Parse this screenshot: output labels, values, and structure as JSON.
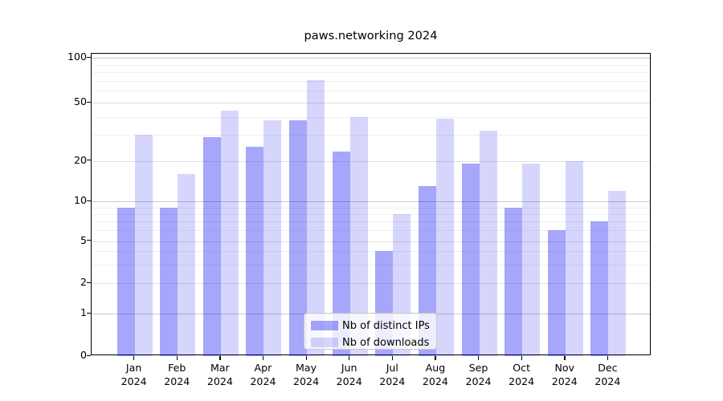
{
  "page": {
    "background": "#ffffff"
  },
  "chart_data": {
    "type": "bar",
    "title": "paws.networking 2024",
    "categories": [
      "Jan",
      "Feb",
      "Mar",
      "Apr",
      "May",
      "Jun",
      "Jul",
      "Aug",
      "Sep",
      "Oct",
      "Nov",
      "Dec"
    ],
    "category_year": "2024",
    "series": [
      {
        "name": "Nb of distinct IPs",
        "color": "#a6a6f4",
        "values": [
          9,
          9,
          29,
          25,
          38,
          23,
          4,
          13,
          19,
          9,
          6,
          7
        ]
      },
      {
        "name": "Nb of downloads",
        "color": "#dadaf9",
        "values": [
          30,
          16,
          44,
          38,
          71,
          40,
          8,
          39,
          32,
          19,
          20,
          12
        ]
      }
    ],
    "xlabel": "",
    "ylabel": "",
    "ylim": [
      0,
      100
    ],
    "yscale": "log-like",
    "y_tick_values": [
      0,
      1,
      2,
      5,
      10,
      20,
      50,
      100
    ],
    "y_minor_gridlines": [
      3,
      4,
      6,
      7,
      8,
      9,
      30,
      40,
      60,
      70,
      80,
      90
    ],
    "grid": true,
    "legend_position": "lower-center-inside",
    "axis_color": "#000000",
    "major_grid_color": "#c9c9c9",
    "minor_grid_color": "#f0f0f0"
  }
}
